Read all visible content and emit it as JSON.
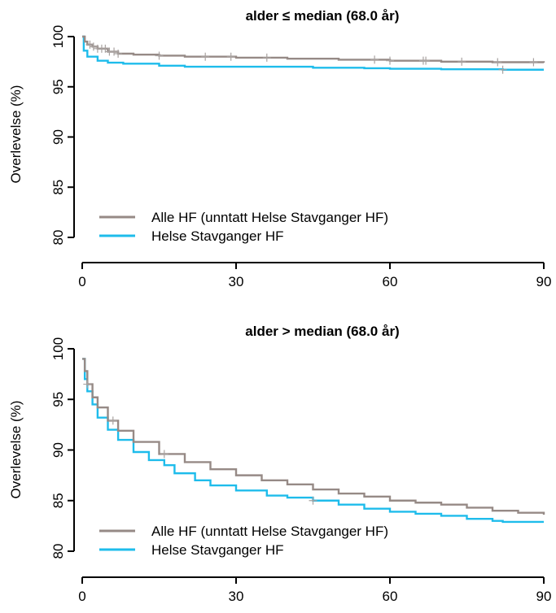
{
  "chart_data": [
    {
      "type": "line",
      "title": "alder ≤ median (68.0 år)",
      "ylabel": "Overlevelse (%)",
      "xlabel": "",
      "xlim": [
        0,
        90
      ],
      "ylim": [
        80,
        100
      ],
      "x_ticks": [
        "0",
        "30",
        "60",
        "90"
      ],
      "y_ticks": [
        "80",
        "85",
        "90",
        "95",
        "100"
      ],
      "legend_position": "bottom-left",
      "series": [
        {
          "name": "Alle HF (unntatt Helse Stavganger HF)",
          "color": "#968A86",
          "points": [
            [
              0,
              100
            ],
            [
              0.5,
              99.5
            ],
            [
              1,
              99.2
            ],
            [
              2,
              99.0
            ],
            [
              3,
              98.8
            ],
            [
              5,
              98.5
            ],
            [
              7,
              98.3
            ],
            [
              10,
              98.2
            ],
            [
              15,
              98.1
            ],
            [
              20,
              98.0
            ],
            [
              30,
              97.9
            ],
            [
              40,
              97.8
            ],
            [
              50,
              97.7
            ],
            [
              60,
              97.6
            ],
            [
              70,
              97.5
            ],
            [
              80,
              97.45
            ],
            [
              90,
              97.4
            ]
          ],
          "censor_x": [
            1.5,
            2.2,
            3,
            3.8,
            4.5,
            5.3,
            6.2,
            7,
            15,
            24,
            29,
            36,
            57,
            60,
            66.5,
            67,
            74,
            81,
            88
          ]
        },
        {
          "name": "Helse Stavganger HF",
          "color": "#1EBCEB",
          "points": [
            [
              0,
              100
            ],
            [
              0.3,
              98.6
            ],
            [
              1,
              98.0
            ],
            [
              3,
              97.6
            ],
            [
              5,
              97.4
            ],
            [
              8,
              97.3
            ],
            [
              15,
              97.1
            ],
            [
              20,
              97.0
            ],
            [
              30,
              97.0
            ],
            [
              45,
              96.9
            ],
            [
              55,
              96.85
            ],
            [
              60,
              96.8
            ],
            [
              70,
              96.75
            ],
            [
              82,
              96.7
            ],
            [
              90,
              96.7
            ]
          ],
          "censor_x": [
            82
          ]
        }
      ]
    },
    {
      "type": "line",
      "title": "alder > median (68.0 år)",
      "ylabel": "Overlevelse (%)",
      "xlabel": "",
      "xlim": [
        0,
        90
      ],
      "ylim": [
        80,
        100
      ],
      "x_ticks": [
        "0",
        "30",
        "60",
        "90"
      ],
      "y_ticks": [
        "80",
        "85",
        "90",
        "95",
        "100"
      ],
      "legend_position": "bottom-left",
      "series": [
        {
          "name": "Alle HF (unntatt Helse Stavganger HF)",
          "color": "#968A86",
          "points": [
            [
              0,
              99
            ],
            [
              0.5,
              97.8
            ],
            [
              1,
              96.5
            ],
            [
              2,
              95.2
            ],
            [
              3,
              94.2
            ],
            [
              5,
              92.9
            ],
            [
              7,
              91.9
            ],
            [
              10,
              90.8
            ],
            [
              15,
              89.6
            ],
            [
              20,
              88.8
            ],
            [
              25,
              88.1
            ],
            [
              30,
              87.5
            ],
            [
              35,
              87.0
            ],
            [
              40,
              86.6
            ],
            [
              45,
              86.1
            ],
            [
              50,
              85.7
            ],
            [
              55,
              85.4
            ],
            [
              60,
              85.0
            ],
            [
              65,
              84.8
            ],
            [
              70,
              84.6
            ],
            [
              75,
              84.3
            ],
            [
              80,
              84.0
            ],
            [
              85,
              83.8
            ],
            [
              90,
              83.6
            ]
          ],
          "censor_x": [
            1,
            6,
            16
          ]
        },
        {
          "name": "Helse Stavganger HF",
          "color": "#1EBCEB",
          "points": [
            [
              0,
              99
            ],
            [
              0.5,
              97
            ],
            [
              1,
              95.8
            ],
            [
              2,
              94.5
            ],
            [
              3,
              93.2
            ],
            [
              5,
              92
            ],
            [
              7,
              91
            ],
            [
              10,
              89.8
            ],
            [
              13,
              89.0
            ],
            [
              16,
              88.5
            ],
            [
              18,
              87.7
            ],
            [
              22,
              87.0
            ],
            [
              25,
              86.5
            ],
            [
              30,
              86.0
            ],
            [
              35,
              86.0
            ],
            [
              36,
              85.5
            ],
            [
              40,
              85.3
            ],
            [
              45,
              85.0
            ],
            [
              50,
              84.6
            ],
            [
              55,
              84.2
            ],
            [
              60,
              83.9
            ],
            [
              65,
              83.7
            ],
            [
              70,
              83.5
            ],
            [
              75,
              83.2
            ],
            [
              80,
              83.0
            ],
            [
              82,
              82.9
            ],
            [
              90,
              82.9
            ]
          ],
          "censor_x": [
            45
          ]
        }
      ]
    }
  ]
}
